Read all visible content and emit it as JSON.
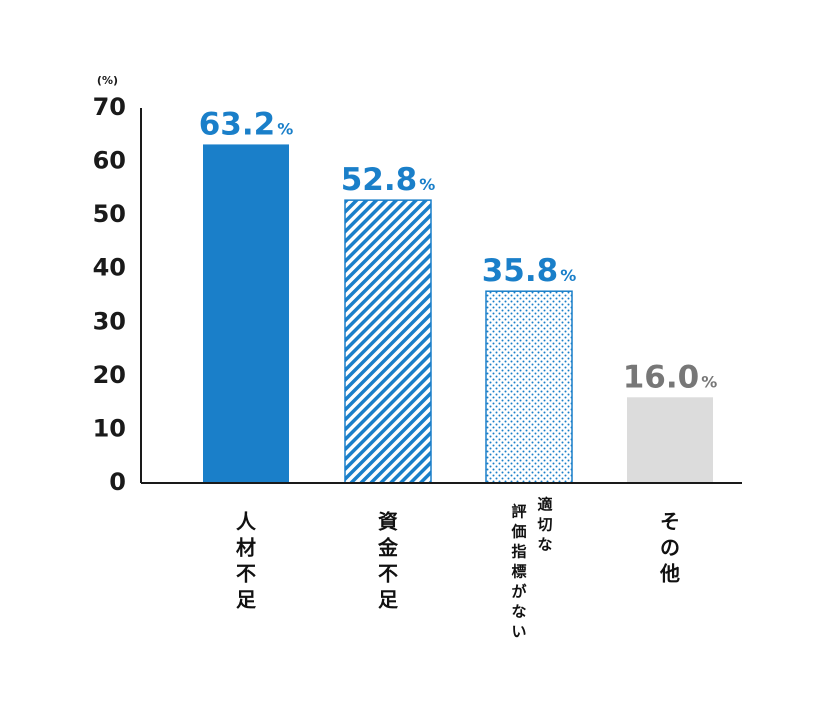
{
  "chart_data": {
    "type": "bar",
    "unit_label": "(%)",
    "ylim": [
      0,
      70
    ],
    "yticks": [
      "0",
      "10",
      "20",
      "30",
      "40",
      "50",
      "60",
      "70"
    ],
    "categories": [
      "人材不足",
      "資金不足",
      "評価指標がない適切な",
      "その他"
    ],
    "category_columns": [
      [
        "人材不足"
      ],
      [
        "資金不足"
      ],
      [
        "評価指標がない",
        "適切な"
      ],
      [
        "その他"
      ]
    ],
    "values": [
      63.2,
      52.8,
      35.8,
      16.0
    ],
    "value_labels": [
      "63.2",
      "52.8",
      "35.8",
      "16.0"
    ],
    "value_suffix": "%",
    "bar_styles": [
      "solid",
      "diagonal-stripes",
      "dots",
      "solid-gray"
    ],
    "colors": {
      "blue": "#1a7fc9",
      "gray": "#dcdcdc",
      "gray_label": "#777777",
      "axis": "#1a1a1a"
    },
    "grid": false,
    "legend": "none"
  }
}
